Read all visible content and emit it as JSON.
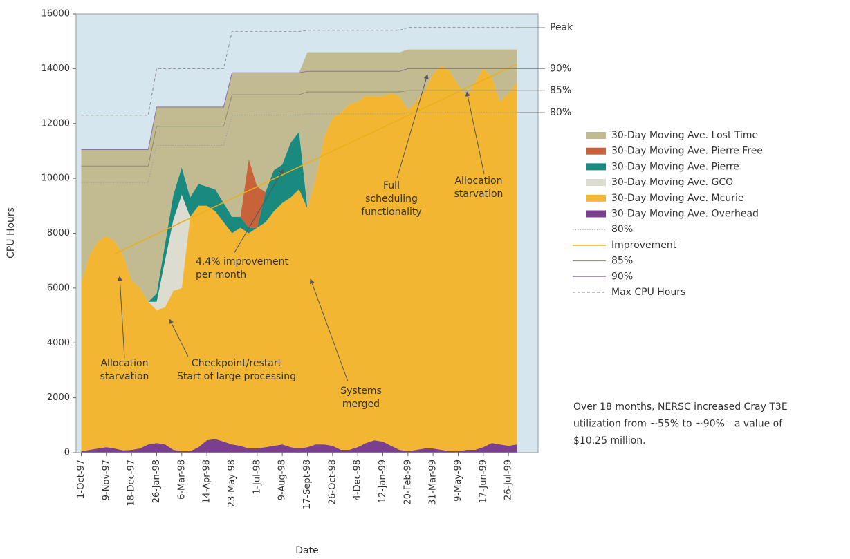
{
  "chart_data": {
    "type": "area",
    "y_label": "CPU Hours",
    "x_label": "Date",
    "xlim": [
      "23-Sep-97",
      "10-Sep-99"
    ],
    "ylim": [
      0,
      16000
    ],
    "yticks": [
      0,
      2000,
      4000,
      6000,
      8000,
      10000,
      12000,
      14000,
      16000
    ],
    "xticks": [
      "1-Oct-97",
      "9-Nov-97",
      "18-Dec-97",
      "26-Jan-98",
      "6-Mar-98",
      "14-Apr-98",
      "23-May-98",
      "1-Jul-98",
      "9-Aug-98",
      "17-Sept-98",
      "26-Oct-98",
      "4-Dec-98",
      "12-Jan-99",
      "20-Feb-99",
      "31-Mar-99",
      "9-May-99",
      "17-Jun-99",
      "26-Jul-99"
    ],
    "x": [
      "1-Oct-97",
      "14-Oct-97",
      "27-Oct-97",
      "9-Nov-97",
      "22-Nov-97",
      "5-Dec-97",
      "18-Dec-97",
      "31-Dec-97",
      "13-Jan-98",
      "26-Jan-98",
      "8-Feb-98",
      "21-Feb-98",
      "6-Mar-98",
      "19-Mar-98",
      "1-Apr-98",
      "14-Apr-98",
      "27-Apr-98",
      "10-May-98",
      "23-May-98",
      "5-Jun-98",
      "18-Jun-98",
      "1-Jul-98",
      "14-Jul-98",
      "27-Jul-98",
      "9-Aug-98",
      "22-Aug-98",
      "4-Sep-98",
      "17-Sep-98",
      "30-Sep-98",
      "13-Oct-98",
      "26-Oct-98",
      "8-Nov-98",
      "21-Nov-98",
      "4-Dec-98",
      "17-Dec-98",
      "30-Dec-98",
      "12-Jan-99",
      "25-Jan-99",
      "7-Feb-99",
      "20-Feb-99",
      "5-Mar-99",
      "18-Mar-99",
      "31-Mar-99",
      "13-Apr-99",
      "26-Apr-99",
      "9-May-99",
      "22-May-99",
      "4-Jun-99",
      "17-Jun-99",
      "30-Jun-99",
      "13-Jul-99",
      "26-Jul-99",
      "8-Aug-99"
    ],
    "background": "#d6e6ee",
    "series": [
      {
        "name": "30-Day Moving Ave. Lost Time",
        "type": "area",
        "color": "#c2bb92",
        "values": [
          4850,
          3850,
          3350,
          3150,
          3350,
          3850,
          4750,
          5050,
          5550,
          6800,
          5000,
          3200,
          2200,
          3300,
          2800,
          2900,
          3000,
          3500,
          5250,
          5250,
          3150,
          4150,
          4350,
          3550,
          3350,
          2550,
          2150,
          5700,
          4600,
          3100,
          2400,
          2200,
          1900,
          1800,
          1600,
          1600,
          1600,
          1500,
          1600,
          2200,
          1900,
          1500,
          900,
          600,
          800,
          1300,
          1700,
          1200,
          700,
          1000,
          1900,
          1600,
          1200
        ]
      },
      {
        "name": "30-Day Moving Ave. Pierre Free",
        "type": "area",
        "color": "#c8623a",
        "values": [
          0,
          0,
          0,
          0,
          0,
          0,
          0,
          0,
          0,
          0,
          0,
          0,
          0,
          0,
          0,
          0,
          0,
          0,
          0,
          0,
          2500,
          1500,
          0,
          0,
          0,
          0,
          0,
          0,
          0,
          0,
          0,
          0,
          0,
          0,
          0,
          0,
          0,
          0,
          0,
          0,
          0,
          0,
          0,
          0,
          0,
          0,
          0,
          0,
          0,
          0,
          0,
          0,
          0
        ]
      },
      {
        "name": "30-Day Moving Ave. Pierre",
        "type": "area",
        "color": "#1a8a7e",
        "values": [
          0,
          0,
          0,
          0,
          0,
          0,
          0,
          0,
          0,
          300,
          600,
          900,
          1000,
          700,
          800,
          700,
          800,
          700,
          600,
          400,
          200,
          0,
          1100,
          1500,
          1400,
          2000,
          2100,
          0,
          0,
          0,
          0,
          0,
          0,
          0,
          0,
          0,
          0,
          0,
          0,
          0,
          0,
          0,
          0,
          0,
          0,
          0,
          0,
          0,
          0,
          0,
          0,
          0,
          0
        ]
      },
      {
        "name": "30-Day Moving Ave. GCO",
        "type": "area",
        "color": "#dcdcd0",
        "values": [
          0,
          0,
          0,
          0,
          0,
          0,
          0,
          0,
          0,
          300,
          1700,
          2600,
          3400,
          0,
          0,
          0,
          0,
          0,
          0,
          0,
          0,
          0,
          0,
          0,
          0,
          0,
          0,
          0,
          0,
          0,
          0,
          0,
          0,
          0,
          0,
          0,
          0,
          0,
          0,
          0,
          0,
          0,
          0,
          0,
          0,
          0,
          0,
          0,
          0,
          0,
          0,
          0,
          0
        ]
      },
      {
        "name": "30-Day Moving Ave. Mcurie",
        "type": "area",
        "color": "#f2b632",
        "values": [
          6150,
          7100,
          7550,
          7700,
          7550,
          7120,
          6200,
          5850,
          5200,
          4850,
          5000,
          5800,
          5950,
          8550,
          8800,
          8550,
          8300,
          8000,
          7700,
          7950,
          7850,
          8050,
          8200,
          8550,
          8800,
          9100,
          9450,
          8700,
          9700,
          11200,
          11950,
          12300,
          12600,
          12600,
          12650,
          12550,
          12600,
          12850,
          12900,
          12450,
          12700,
          13050,
          13650,
          14000,
          13850,
          13350,
          12900,
          13400,
          13800,
          13350,
          12500,
          12850,
          13200
        ]
      },
      {
        "name": "30-Day Moving Ave. Overhead",
        "type": "area",
        "color": "#7b3f8f",
        "values": [
          50,
          100,
          150,
          200,
          150,
          80,
          100,
          150,
          300,
          350,
          300,
          100,
          50,
          50,
          200,
          450,
          500,
          400,
          300,
          250,
          150,
          150,
          200,
          250,
          300,
          200,
          150,
          200,
          300,
          300,
          250,
          100,
          100,
          200,
          350,
          450,
          400,
          250,
          100,
          50,
          100,
          150,
          150,
          100,
          50,
          50,
          100,
          100,
          200,
          350,
          300,
          250,
          300
        ]
      },
      {
        "name": "80%",
        "type": "line",
        "color": "#9a9a9a",
        "style": "dotted",
        "values": [
          9850,
          9850,
          9850,
          9850,
          9850,
          9850,
          9850,
          9850,
          9850,
          11200,
          11200,
          11200,
          11200,
          11200,
          11200,
          11200,
          11200,
          11200,
          12300,
          12300,
          12300,
          12300,
          12300,
          12300,
          12300,
          12300,
          12300,
          12350,
          12350,
          12350,
          12350,
          12350,
          12350,
          12350,
          12350,
          12350,
          12350,
          12350,
          12350,
          12400,
          12400,
          12400,
          12400,
          12400,
          12400,
          12400,
          12400,
          12400,
          12400,
          12400,
          12400,
          12400,
          12400
        ]
      },
      {
        "name": "Improvement",
        "type": "line",
        "color": "#e8b01e",
        "style": "solid",
        "values": [
          null,
          null,
          null,
          null,
          7250,
          7394,
          7538,
          7682,
          7826,
          7970,
          8114,
          8258,
          8402,
          8546,
          8690,
          8834,
          8978,
          9122,
          9266,
          9410,
          9554,
          9698,
          9842,
          9986,
          10130,
          10274,
          10418,
          10562,
          10706,
          10850,
          10994,
          11138,
          11282,
          11426,
          11570,
          11714,
          11858,
          12002,
          12146,
          12290,
          12434,
          12578,
          12722,
          12866,
          13010,
          13154,
          13298,
          13442,
          13586,
          13730,
          13874,
          14018,
          14162
        ]
      },
      {
        "name": "85%",
        "type": "line",
        "color": "#8c8a70",
        "style": "solid",
        "values": [
          10450,
          10450,
          10450,
          10450,
          10450,
          10450,
          10450,
          10450,
          10450,
          11900,
          11900,
          11900,
          11900,
          11900,
          11900,
          11900,
          11900,
          11900,
          13050,
          13050,
          13050,
          13050,
          13050,
          13050,
          13050,
          13050,
          13050,
          13150,
          13150,
          13150,
          13150,
          13150,
          13150,
          13150,
          13150,
          13150,
          13150,
          13150,
          13150,
          13200,
          13200,
          13200,
          13200,
          13200,
          13200,
          13200,
          13200,
          13200,
          13200,
          13200,
          13200,
          13200,
          13200
        ]
      },
      {
        "name": "90%",
        "type": "line",
        "color": "#8a72a8",
        "style": "solid",
        "values": [
          11050,
          11050,
          11050,
          11050,
          11050,
          11050,
          11050,
          11050,
          11050,
          12600,
          12600,
          12600,
          12600,
          12600,
          12600,
          12600,
          12600,
          12600,
          13850,
          13850,
          13850,
          13850,
          13850,
          13850,
          13850,
          13850,
          13850,
          13900,
          13900,
          13900,
          13900,
          13900,
          13900,
          13900,
          13900,
          13900,
          13900,
          13900,
          13900,
          14000,
          14000,
          14000,
          14000,
          14000,
          14000,
          14000,
          14000,
          14000,
          14000,
          14000,
          14000,
          14000,
          14000
        ]
      },
      {
        "name": "Max CPU Hours",
        "type": "line",
        "color": "#8a8a8a",
        "style": "dashed",
        "values": [
          12300,
          12300,
          12300,
          12300,
          12300,
          12300,
          12300,
          12300,
          12300,
          14000,
          14000,
          14000,
          14000,
          14000,
          14000,
          14000,
          14000,
          14000,
          15350,
          15350,
          15350,
          15350,
          15350,
          15350,
          15350,
          15350,
          15350,
          15400,
          15400,
          15400,
          15400,
          15400,
          15400,
          15400,
          15400,
          15400,
          15400,
          15400,
          15400,
          15500,
          15500,
          15500,
          15500,
          15500,
          15500,
          15500,
          15500,
          15500,
          15500,
          15500,
          15500,
          15500,
          15500
        ]
      }
    ],
    "end_labels": [
      "Peak",
      "90%",
      "85%",
      "80%"
    ],
    "annotations": [
      [
        "Allocation",
        "starvation"
      ],
      [
        "Checkpoint/restart",
        "Start of large processing"
      ],
      [
        "4.4% improvement",
        "per month"
      ],
      [
        "Systems",
        "merged"
      ],
      [
        "Full",
        "scheduling",
        "functionality"
      ],
      [
        "Allocation",
        "starvation"
      ]
    ],
    "note": [
      "Over 18 months, NERSC increased Cray T3E",
      "utilization from ~55% to ~90%—a value of",
      "$10.25 million."
    ]
  }
}
